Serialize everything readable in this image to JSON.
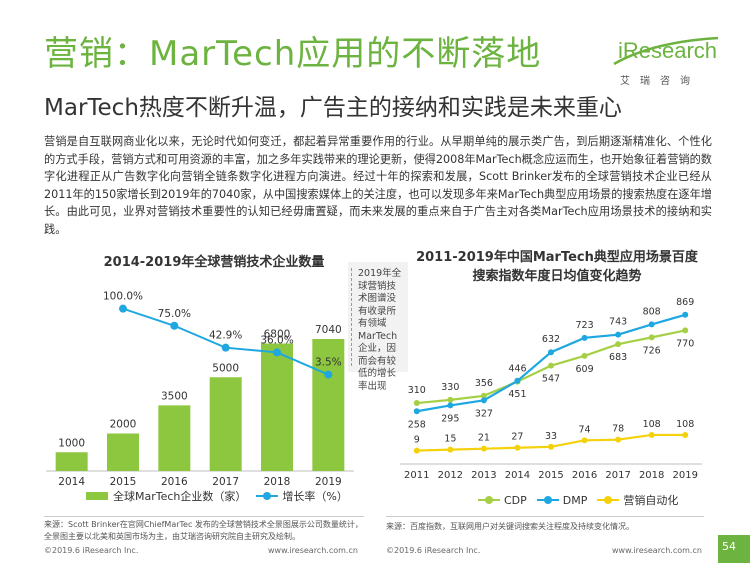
{
  "header": {
    "title": "营销：MarTech应用的不断落地",
    "subtitle": "MarTech热度不断升温，广告主的接纳和实践是未来重心"
  },
  "logo": {
    "wordmark": "iResearch",
    "cn": "艾瑞咨询",
    "accent_color": "#6cb33f"
  },
  "body_text": "营销是自互联网商业化以来，无论时代如何变迁，都起着异常重要作用的行业。从早期单纯的展示类广告，到后期逐渐精准化、个性化的方式手段，营销方式和可用资源的丰富，加之多年实践带来的理论更新，使得2008年MarTech概念应运而生，也开始象征着营销的数字化进程正从广告数字化向营销全链条数字化进程方向演进。经过十年的探索和发展，Scott Brinker发布的全球营销技术企业已经从2011年的150家增长到2019年的7040家，从中国搜索媒体上的关注度，也可以发现多年来MarTech典型应用场景的搜索热度在逐年增长。由此可见，业界对营销技术重要性的认知已经毋庸置疑，而未来发展的重点来自于广告主对各类MarTech应用场景技术的接纳和实践。",
  "left_chart": {
    "note": "2019年全球营销技术图谱没有收录所有领域MarTech企业，因而会有较低的增长率出现",
    "source": "来源：Scott Brinker在官网ChiefMarTec 发布的全球营销技术全景图展示公司数量统计，全景图主要以北美和英国市场为主，由艾瑞咨询研究院自主研究及绘制。",
    "footer_left": "©2019.6 iResearch Inc.",
    "footer_right": "www.iresearch.com.cn"
  },
  "right_chart": {
    "source": "来源：百度指数，互联网用户对关键词搜索关注程度及持续变化情况。",
    "footer_left": "©2019.6 iResearch Inc.",
    "footer_right": "www.iresearch.com.cn"
  },
  "page_number": "54",
  "chart_data": [
    {
      "type": "bar",
      "title": "2014-2019年全球营销技术企业数量",
      "categories": [
        "2014",
        "2015",
        "2016",
        "2017",
        "2018",
        "2019"
      ],
      "series": [
        {
          "name": "全球MarTech企业数（家）",
          "kind": "bar",
          "values": [
            1000,
            2000,
            3500,
            5000,
            6800,
            7040
          ],
          "color": "#8dc73f"
        },
        {
          "name": "增长率（%）",
          "kind": "line",
          "values": [
            null,
            100.0,
            75.0,
            42.9,
            36.0,
            3.5
          ],
          "labels": [
            "",
            "100.0%",
            "75.0%",
            "42.9%",
            "36.0%",
            "3.5%"
          ],
          "color": "#1ea7e0"
        }
      ],
      "ylim": [
        0,
        8000
      ],
      "y2lim": [
        0,
        120
      ],
      "legend": "bottom"
    },
    {
      "type": "line",
      "title": "2011-2019年中国MarTech典型应用场景百度搜索指数年度日均值变化趋势",
      "categories": [
        "2011",
        "2012",
        "2013",
        "2014",
        "2015",
        "2016",
        "2017",
        "2018",
        "2019"
      ],
      "series": [
        {
          "name": "CDP",
          "values": [
            310,
            330,
            356,
            446,
            547,
            609,
            683,
            726,
            770
          ],
          "color": "#a6cf45"
        },
        {
          "name": "DMP",
          "values": [
            258,
            295,
            327,
            451,
            632,
            723,
            743,
            808,
            869
          ],
          "color": "#1ea7e0"
        },
        {
          "name": "营销自动化",
          "values": [
            9,
            15,
            21,
            27,
            33,
            74,
            78,
            108,
            108
          ],
          "color": "#f5d10b"
        }
      ],
      "ylim": [
        0,
        950
      ],
      "legend": "bottom"
    }
  ]
}
